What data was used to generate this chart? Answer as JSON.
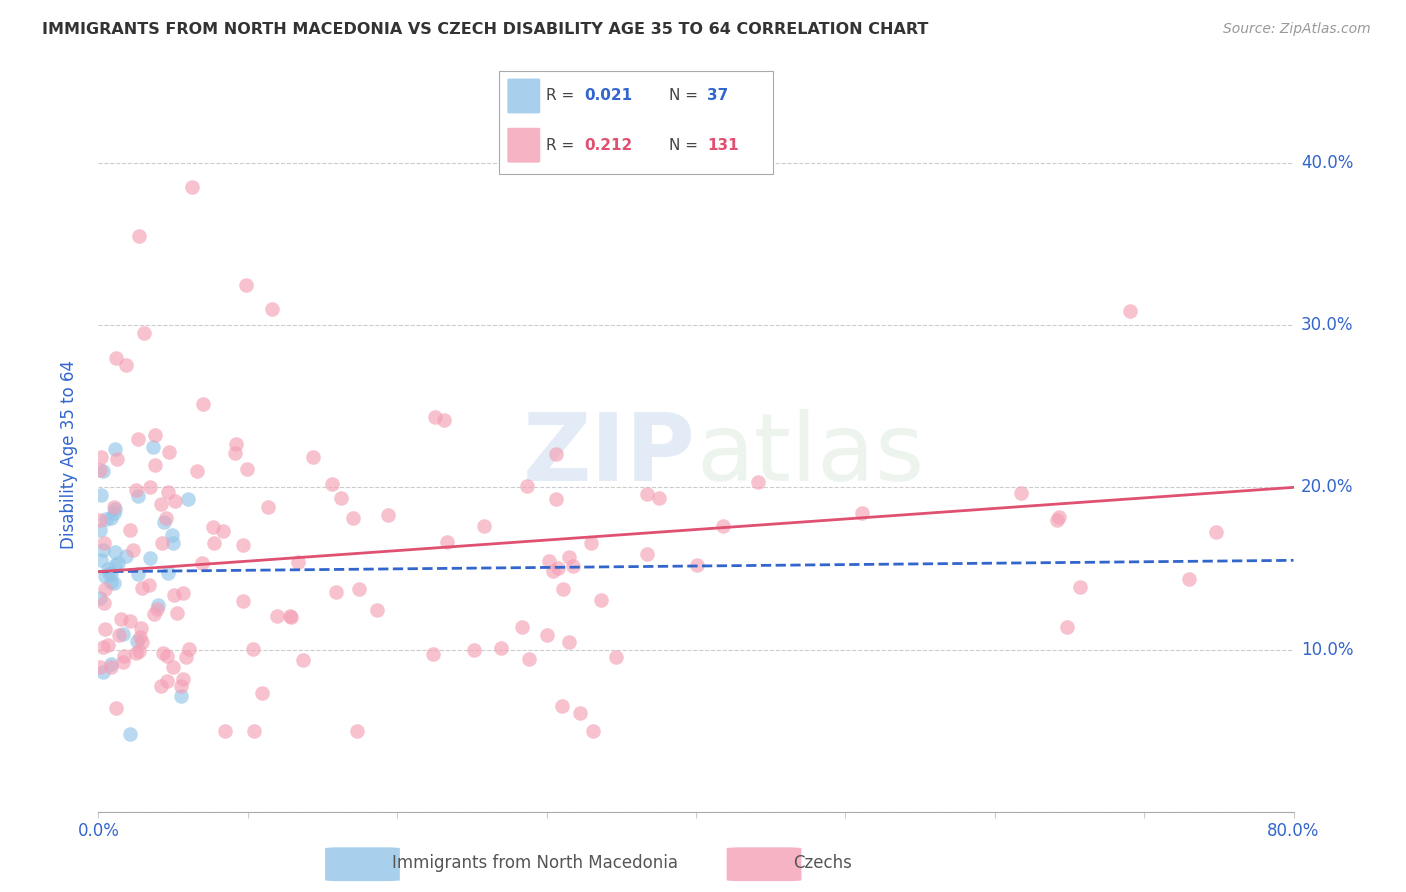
{
  "title": "IMMIGRANTS FROM NORTH MACEDONIA VS CZECH DISABILITY AGE 35 TO 64 CORRELATION CHART",
  "source": "Source: ZipAtlas.com",
  "ylabel": "Disability Age 35 to 64",
  "xlim": [
    0.0,
    0.8
  ],
  "ylim": [
    0.0,
    0.44
  ],
  "xtick_positions": [
    0.0,
    0.1,
    0.2,
    0.3,
    0.4,
    0.5,
    0.6,
    0.7,
    0.8
  ],
  "xticklabels": [
    "0.0%",
    "",
    "",
    "",
    "",
    "",
    "",
    "",
    "80.0%"
  ],
  "ytick_positions": [
    0.0,
    0.1,
    0.2,
    0.3,
    0.4
  ],
  "yticklabels": [
    "",
    "10.0%",
    "20.0%",
    "30.0%",
    "40.0%"
  ],
  "blue_color": "#92c5e8",
  "pink_color": "#f4a0b5",
  "blue_line_color": "#3366cc",
  "pink_line_color": "#e05070",
  "grid_color": "#cccccc",
  "title_color": "#333333",
  "axis_label_color": "#3366cc",
  "tick_label_color": "#3366cc",
  "source_color": "#999999",
  "watermark_color": "#d0dff0",
  "blue_intercept": 0.148,
  "blue_slope": 0.03,
  "pink_intercept": 0.145,
  "pink_slope": 0.068
}
